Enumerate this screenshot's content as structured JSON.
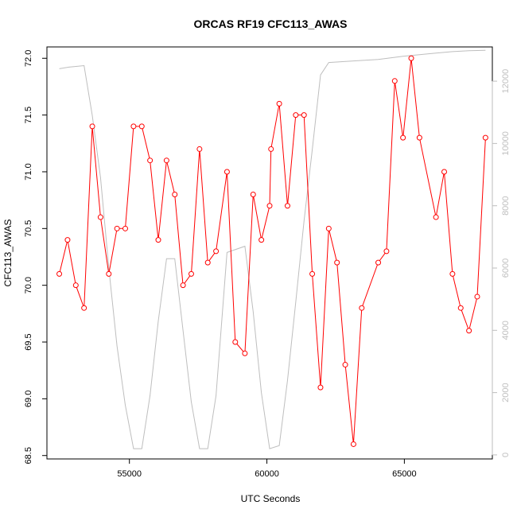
{
  "chart_data": {
    "type": "line",
    "title": "ORCAS RF19 CFC113_AWAS",
    "xlabel": "UTC Seconds",
    "ylabel": "CFC113_AWAS",
    "xlim": [
      52000,
      68200
    ],
    "ylim": [
      68.47,
      72.1
    ],
    "y2lim": [
      -130,
      13100
    ],
    "x_ticks": [
      55000,
      60000,
      65000
    ],
    "x_tick_labels": [
      "55000",
      "60000",
      "65000"
    ],
    "y_ticks": [
      68.5,
      69.0,
      69.5,
      70.0,
      70.5,
      71.0,
      71.5,
      72.0
    ],
    "y_tick_labels": [
      "68.5",
      "69.0",
      "69.5",
      "70.0",
      "70.5",
      "71.0",
      "71.5",
      "72.0"
    ],
    "y2_ticks": [
      0,
      2000,
      4000,
      6000,
      8000,
      10000,
      12000
    ],
    "y2_tick_labels": [
      "0",
      "2000",
      "4000",
      "6000",
      "8000",
      "10000",
      "12000"
    ],
    "series": [
      {
        "color": "#ff0000",
        "axis": "left",
        "marker": "open-circle",
        "x": [
          52450,
          52750,
          53050,
          53350,
          53650,
          53950,
          54250,
          54550,
          54850,
          55150,
          55450,
          55750,
          56050,
          56350,
          56650,
          56950,
          57250,
          57550,
          57850,
          58150,
          58550,
          58850,
          59200,
          59500,
          59800,
          60100,
          60150,
          60450,
          60750,
          61050,
          61350,
          61650,
          61950,
          62250,
          62550,
          62850,
          63150,
          63450,
          64050,
          64350,
          64650,
          64950,
          65250,
          65550,
          66150,
          66450,
          66750,
          67050,
          67350,
          67650,
          67950
        ],
        "values": [
          70.1,
          70.4,
          70.0,
          69.8,
          71.4,
          70.6,
          70.1,
          70.5,
          70.5,
          71.4,
          71.4,
          71.1,
          70.4,
          71.1,
          70.8,
          70.0,
          70.1,
          71.2,
          70.2,
          70.3,
          71.0,
          69.5,
          69.4,
          70.8,
          70.4,
          70.7,
          71.2,
          71.6,
          70.7,
          71.5,
          71.5,
          70.1,
          69.1,
          70.5,
          70.2,
          69.3,
          68.6,
          69.8,
          70.2,
          70.3,
          71.8,
          71.3,
          72.0,
          71.3,
          70.6,
          71.0,
          70.1,
          69.8,
          69.6,
          69.9,
          71.3
        ]
      },
      {
        "color": "#bebebe",
        "axis": "right",
        "marker": "none",
        "x": [
          52450,
          52800,
          53350,
          53650,
          53950,
          54250,
          54550,
          54850,
          55150,
          55450,
          55750,
          56050,
          56350,
          56650,
          56950,
          57250,
          57550,
          57850,
          58150,
          58550,
          59200,
          59500,
          59800,
          60100,
          60450,
          60750,
          61050,
          61350,
          61650,
          61950,
          62250,
          63150,
          64050,
          64950,
          65550,
          66150,
          66750,
          67350,
          67950
        ],
        "values": [
          12400,
          12450,
          12500,
          10900,
          8900,
          6000,
          3500,
          1600,
          200,
          200,
          1900,
          4300,
          6300,
          6300,
          4000,
          1700,
          200,
          200,
          1900,
          6500,
          6700,
          4600,
          2000,
          200,
          300,
          2400,
          4900,
          7500,
          9800,
          12200,
          12600,
          12650,
          12700,
          12800,
          12850,
          12900,
          12950,
          12980,
          12990
        ]
      }
    ]
  }
}
